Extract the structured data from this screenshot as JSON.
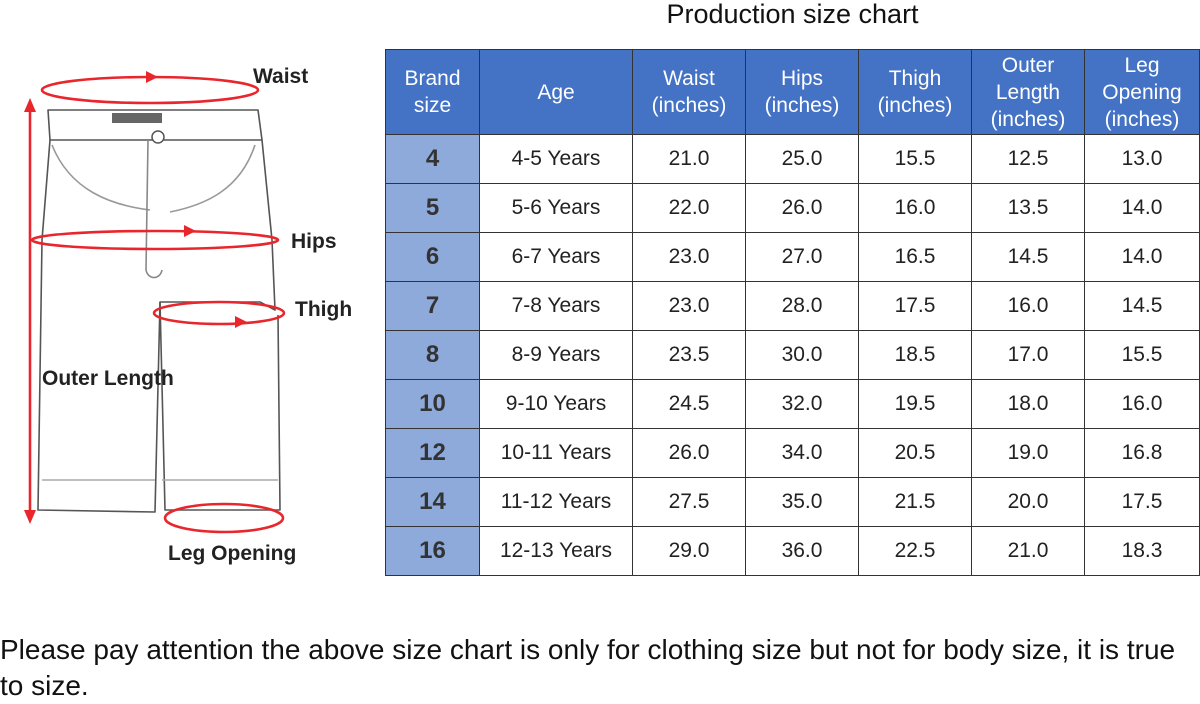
{
  "title": "Production size chart",
  "diagram": {
    "labels": {
      "waist": "Waist",
      "hips": "Hips",
      "thigh": "Thigh",
      "outer_length": "Outer Length",
      "leg_opening": "Leg Opening"
    },
    "accent": "#e8262c"
  },
  "table": {
    "headers": [
      [
        "Brand",
        "size"
      ],
      [
        "Age"
      ],
      [
        "Waist",
        "(inches)"
      ],
      [
        "Hips",
        "(inches)"
      ],
      [
        "Thigh",
        "(inches)"
      ],
      [
        "Outer",
        "Length",
        "(inches)"
      ],
      [
        "Leg",
        "Opening",
        "(inches)"
      ]
    ],
    "rows": [
      [
        "4",
        "4-5 Years",
        "21.0",
        "25.0",
        "15.5",
        "12.5",
        "13.0"
      ],
      [
        "5",
        "5-6 Years",
        "22.0",
        "26.0",
        "16.0",
        "13.5",
        "14.0"
      ],
      [
        "6",
        "6-7 Years",
        "23.0",
        "27.0",
        "16.5",
        "14.5",
        "14.0"
      ],
      [
        "7",
        "7-8 Years",
        "23.0",
        "28.0",
        "17.5",
        "16.0",
        "14.5"
      ],
      [
        "8",
        "8-9 Years",
        "23.5",
        "30.0",
        "18.5",
        "17.0",
        "15.5"
      ],
      [
        "10",
        "9-10 Years",
        "24.5",
        "32.0",
        "19.5",
        "18.0",
        "16.0"
      ],
      [
        "12",
        "10-11 Years",
        "26.0",
        "34.0",
        "20.5",
        "19.0",
        "16.8"
      ],
      [
        "14",
        "11-12 Years",
        "27.5",
        "35.0",
        "21.5",
        "20.0",
        "17.5"
      ],
      [
        "16",
        "12-13 Years",
        "29.0",
        "36.0",
        "22.5",
        "21.0",
        "18.3"
      ]
    ],
    "header_color": "#4472c4",
    "size_column_color": "#8eaadb"
  },
  "note": "Please pay attention the above size chart is only for clothing size but not for body size, it is true to size."
}
